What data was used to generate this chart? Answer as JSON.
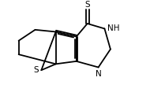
{
  "bg_color": "#ffffff",
  "line_color": "#000000",
  "figsize": [
    1.9,
    1.36
  ],
  "dpi": 100,
  "lw": 1.3,
  "atom_S_thione": "S",
  "atom_S_thio": "S",
  "atom_N": "N",
  "atom_NH": "NH",
  "font_size": 7.5
}
